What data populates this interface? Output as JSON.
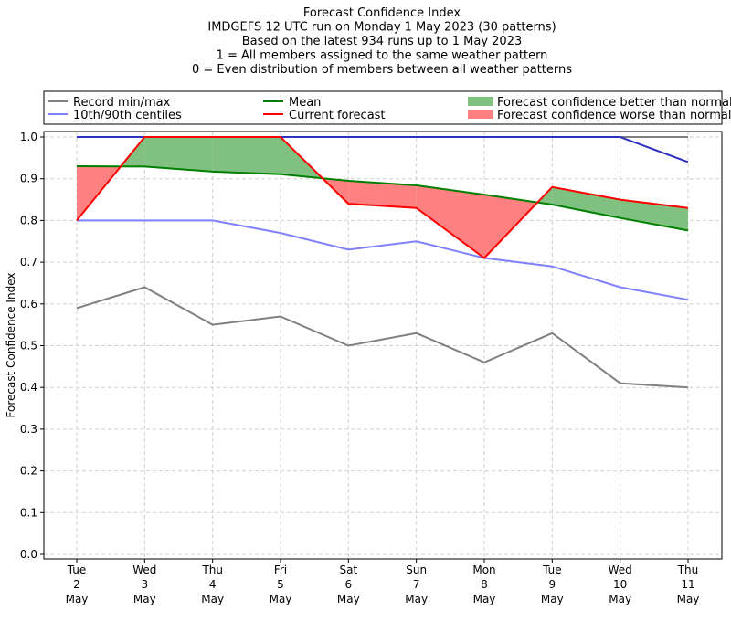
{
  "chart_data": {
    "type": "line",
    "title_lines": [
      "Forecast Confidence Index",
      "IMDGEFS 12 UTC run on Monday 1 May 2023 (30 patterns)",
      "Based on the latest 934 runs up to 1 May 2023",
      "1 = All members assigned to the same weather pattern",
      "0 = Even distribution of members between all weather patterns"
    ],
    "ylabel": "Forecast Confidence Index",
    "xlabel": "",
    "ylim": [
      0,
      1
    ],
    "yticks": [
      "0.0",
      "0.1",
      "0.2",
      "0.3",
      "0.4",
      "0.5",
      "0.6",
      "0.7",
      "0.8",
      "0.9",
      "1.0"
    ],
    "categories": [
      [
        "Tue",
        "2",
        "May"
      ],
      [
        "Wed",
        "3",
        "May"
      ],
      [
        "Thu",
        "4",
        "May"
      ],
      [
        "Fri",
        "5",
        "May"
      ],
      [
        "Sat",
        "6",
        "May"
      ],
      [
        "Sun",
        "7",
        "May"
      ],
      [
        "Mon",
        "8",
        "May"
      ],
      [
        "Tue",
        "9",
        "May"
      ],
      [
        "Wed",
        "10",
        "May"
      ],
      [
        "Thu",
        "11",
        "May"
      ]
    ],
    "grid": true,
    "legend_placement": "top",
    "legend": [
      {
        "label": "Record min/max",
        "kind": "line",
        "color": "#808080"
      },
      {
        "label": "Mean",
        "kind": "line",
        "color": "#008000"
      },
      {
        "label": "Forecast confidence better than normal",
        "kind": "patch",
        "color": "#80c080"
      },
      {
        "label": "10th/90th centiles",
        "kind": "line",
        "color": "#8080ff"
      },
      {
        "label": "Current forecast",
        "kind": "line",
        "color": "#ff0000"
      },
      {
        "label": "Forecast confidence worse than normal",
        "kind": "patch",
        "color": "#ff8080"
      }
    ],
    "series": [
      {
        "name": "Record max",
        "color": "#808080",
        "values": [
          1.0,
          1.0,
          1.0,
          1.0,
          1.0,
          1.0,
          1.0,
          1.0,
          1.0,
          1.0
        ]
      },
      {
        "name": "Record min",
        "color": "#808080",
        "values": [
          0.59,
          0.64,
          0.55,
          0.57,
          0.5,
          0.53,
          0.46,
          0.53,
          0.41,
          0.4
        ]
      },
      {
        "name": "90th centile",
        "color": "#3030c0",
        "values": [
          1.0,
          1.0,
          1.0,
          1.0,
          1.0,
          1.0,
          1.0,
          1.0,
          1.0,
          0.94
        ]
      },
      {
        "name": "10th centile",
        "color": "#8080ff",
        "values": [
          0.8,
          0.8,
          0.8,
          0.77,
          0.73,
          0.75,
          0.71,
          0.69,
          0.64,
          0.61
        ]
      },
      {
        "name": "Mean",
        "color": "#008000",
        "values": [
          0.93,
          0.929,
          0.917,
          0.911,
          0.895,
          0.884,
          0.862,
          0.838,
          0.806,
          0.776
        ]
      },
      {
        "name": "Current forecast",
        "color": "#ff0000",
        "values": [
          0.8,
          1.0,
          1.0,
          1.0,
          0.84,
          0.83,
          0.71,
          0.88,
          0.85,
          0.83
        ]
      }
    ],
    "fill_better_color": "#80c080",
    "fill_worse_color": "#ff8080"
  }
}
